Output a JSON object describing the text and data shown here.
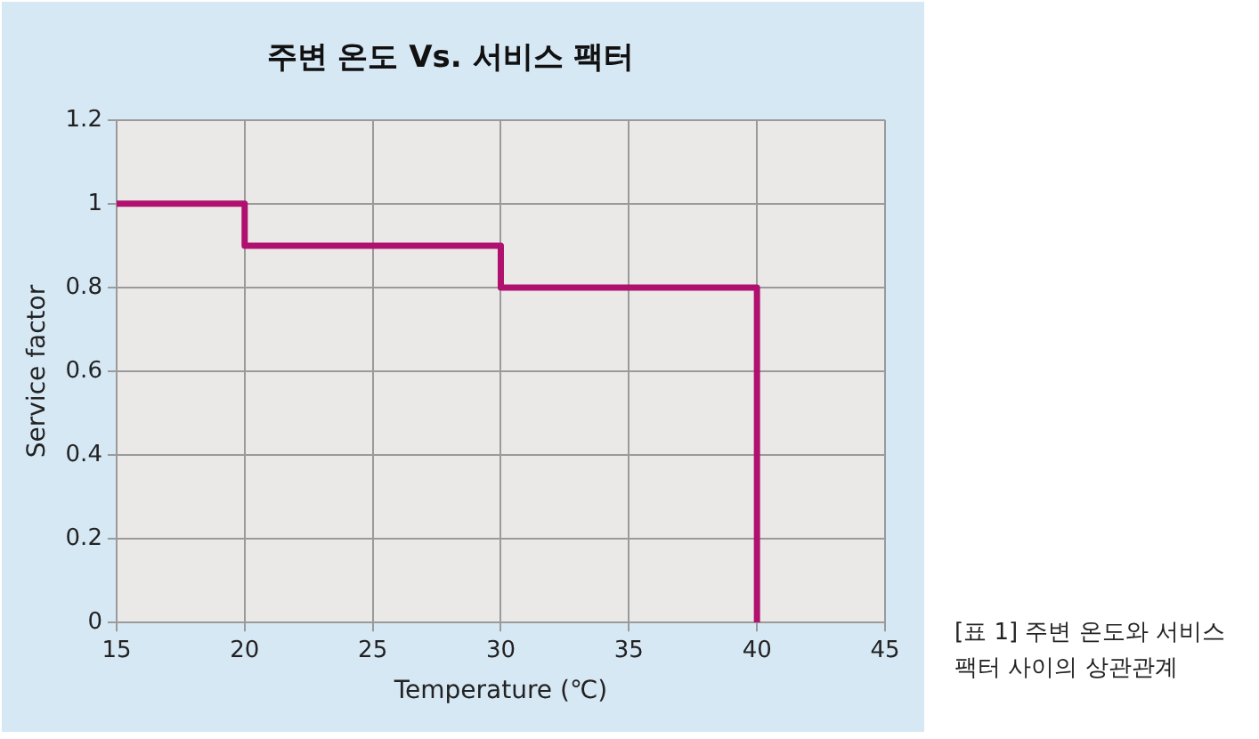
{
  "chart_data": {
    "type": "step",
    "title": "주변 온도 Vs. 서비스 팩터",
    "xlabel": "Temperature (℃)",
    "ylabel": "Service factor",
    "x": [
      15,
      20,
      30,
      40
    ],
    "series": [
      {
        "color": "#b0106e",
        "values": [
          1,
          0.9,
          0.8,
          0
        ]
      }
    ],
    "xlim": [
      15,
      45
    ],
    "xticks": [
      15,
      20,
      25,
      30,
      35,
      40,
      45
    ],
    "ylim": [
      0,
      1.2
    ],
    "yticks": [
      0,
      0.2,
      0.4,
      0.6,
      0.8,
      1,
      1.2
    ],
    "grid": true,
    "legend": false,
    "marker": "none",
    "line_style": "solid",
    "annotations": [
      "[표 1] 주변 온도와 서비스 팩터 사이의 상관관계"
    ]
  }
}
